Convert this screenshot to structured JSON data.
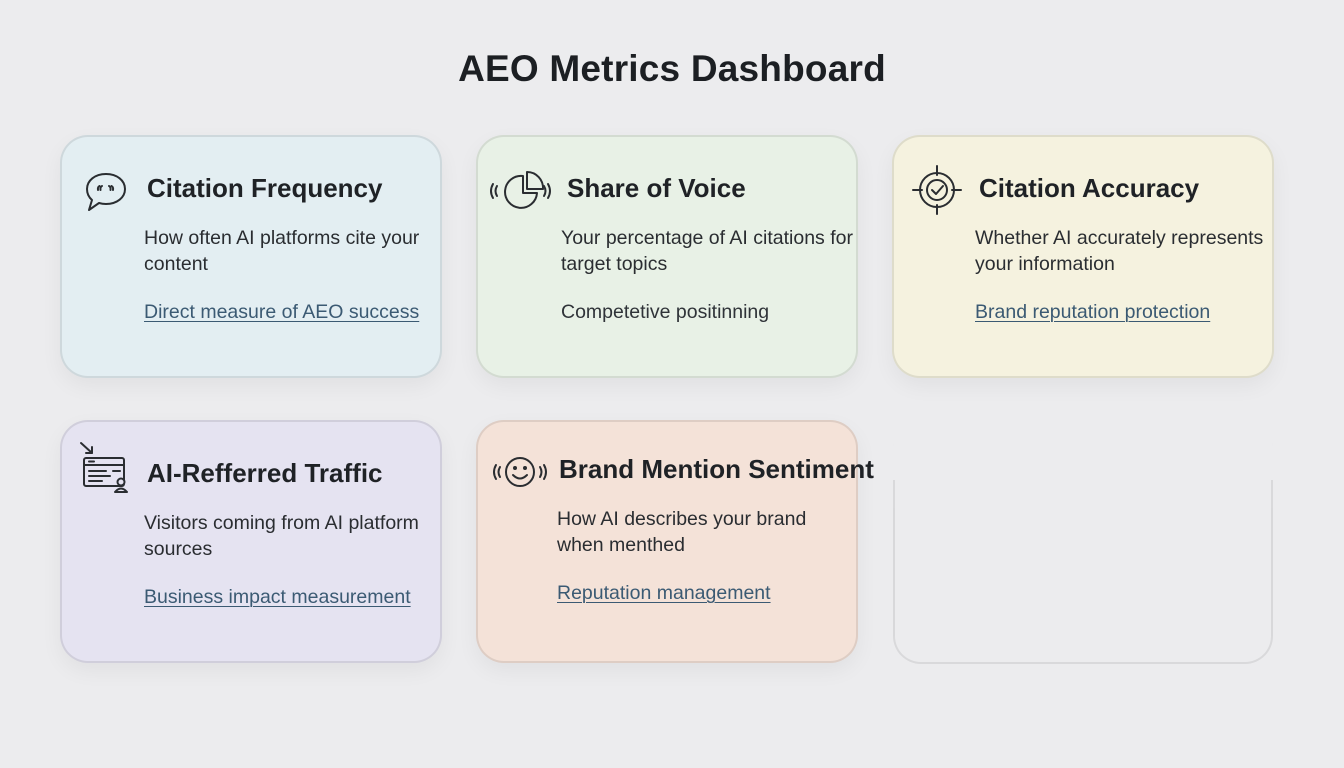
{
  "page": {
    "title": "AEO Metrics Dashboard",
    "background": "#ececee"
  },
  "cards": [
    {
      "title": "Citation Frequency",
      "description": "How often AI platforms cite your content",
      "footer": "Direct measure of AEO success",
      "footer_is_link": true,
      "icon": "speech-bubble-icon",
      "background": "#e3eef2"
    },
    {
      "title": "Share of Voice",
      "description": "Your percentage of AI citations for target topics",
      "footer": "Competetive positinning",
      "footer_is_link": false,
      "icon": "pie-chart-broadcast-icon",
      "background": "#e8f1e6"
    },
    {
      "title": "Citation Accuracy",
      "description": "Whether AI accurately represents your information",
      "footer": "Brand reputation protection",
      "footer_is_link": true,
      "icon": "target-check-icon",
      "background": "#f5f2df"
    },
    {
      "title": "AI-Refferred Traffic",
      "description": "Visitors coming from AI platform sources",
      "footer": "Business impact measurement",
      "footer_is_link": true,
      "icon": "browser-user-icon",
      "background": "#e5e3f1"
    },
    {
      "title": "Brand Mention Sentiment",
      "description": "How AI describes your brand when menthed",
      "footer": "Reputation management",
      "footer_is_link": true,
      "icon": "smiley-broadcast-icon",
      "background": "#f4e2d8"
    }
  ]
}
